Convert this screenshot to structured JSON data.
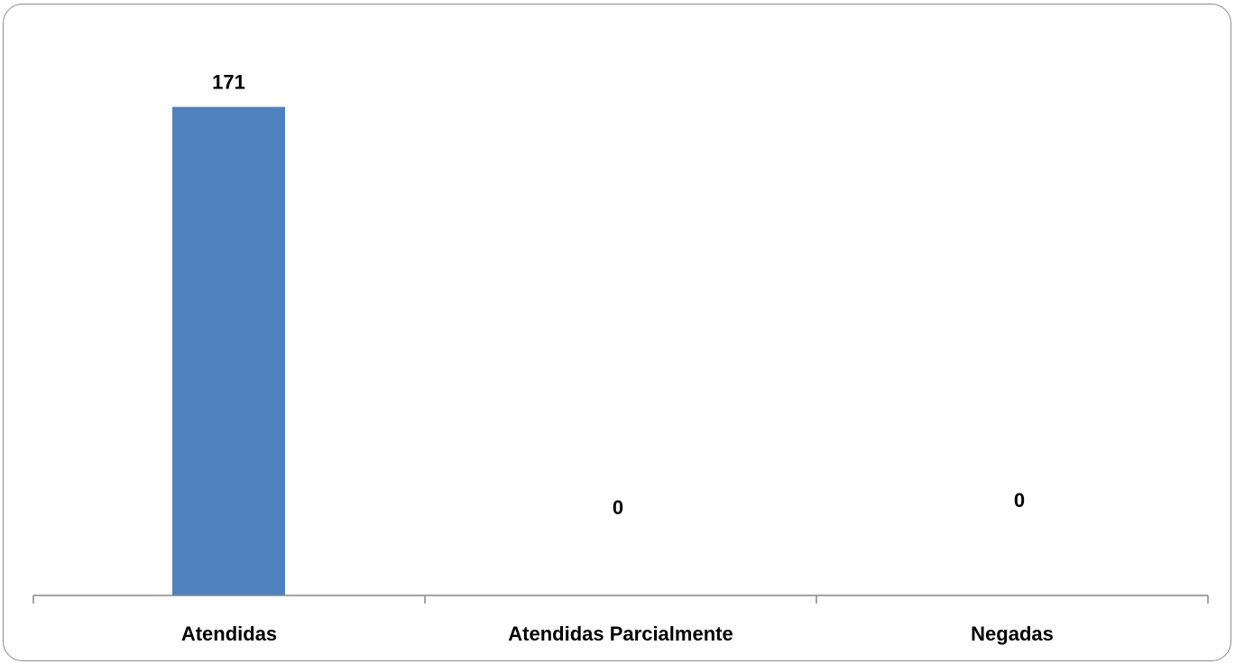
{
  "chart_data": {
    "type": "bar",
    "categories": [
      "Atendidas",
      "Atendidas Parcialmente",
      "Negadas"
    ],
    "values": [
      171,
      0,
      0
    ],
    "data_labels": [
      "171",
      "0",
      "0"
    ],
    "title": "",
    "xlabel": "",
    "ylabel": "",
    "ylim": [
      0,
      180
    ],
    "grid": false,
    "legend": "none",
    "bar_color": "#4f81bd",
    "axis_color": "#868686"
  }
}
